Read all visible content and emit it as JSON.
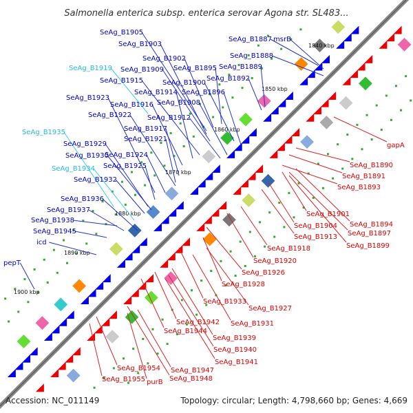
{
  "title": "Salmonella enterica subsp. enterica serovar Agona str. SL483...",
  "accession": "Accession: NC_011149",
  "summary": "Topology: circular; Length: 4,798,660 bp; Genes: 4,669",
  "colors": {
    "forward": "#0000cc",
    "reverse": "#dd0000",
    "rna": "#33bbee",
    "backbone": "#888888"
  },
  "kbp_labels": [
    "1840 kbp",
    "1850 kbp",
    "1860 kbp",
    "1870 kbp",
    "1880 kbp",
    "1890 kbp",
    "1900 kbp"
  ],
  "forward_labels": [
    {
      "text": "SeAg_B1905",
      "color": "#0000cc"
    },
    {
      "text": "SeAg_B1903",
      "color": "#0000cc"
    },
    {
      "text": "SeAg_B1887",
      "color": "#0000cc"
    },
    {
      "text": "msrB",
      "color": "#0000cc"
    },
    {
      "text": "SeAg_B1888",
      "color": "#0000cc"
    },
    {
      "text": "SeAg_B1902",
      "color": "#0000cc"
    },
    {
      "text": "SeAg_B1889",
      "color": "#0000cc"
    },
    {
      "text": "SeAg_B1919",
      "color": "#22bbdd"
    },
    {
      "text": "SeAg_B1909",
      "color": "#0000cc"
    },
    {
      "text": "SeAg_B1895",
      "color": "#0000cc"
    },
    {
      "text": "SeAg_B1915",
      "color": "#0000cc"
    },
    {
      "text": "SeAg_B1900",
      "color": "#0000cc"
    },
    {
      "text": "SeAg_B1892",
      "color": "#0000cc"
    },
    {
      "text": "SeAg_B1914",
      "color": "#0000cc"
    },
    {
      "text": "SeAg_B1896",
      "color": "#0000cc"
    },
    {
      "text": "SeAg_B1923",
      "color": "#0000cc"
    },
    {
      "text": "SeAg_B1908",
      "color": "#0000cc"
    },
    {
      "text": "SeAg_B1916",
      "color": "#0000cc"
    },
    {
      "text": "SeAg_B1922",
      "color": "#0000cc"
    },
    {
      "text": "SeAg_B1912",
      "color": "#0000cc"
    },
    {
      "text": "SeAg_B1917",
      "color": "#0000cc"
    },
    {
      "text": "SeAg_B1935",
      "color": "#22bbdd"
    },
    {
      "text": "SeAg_B1921",
      "color": "#0000cc"
    },
    {
      "text": "SeAg_B1929",
      "color": "#0000cc"
    },
    {
      "text": "SeAg_B1930",
      "color": "#0000cc"
    },
    {
      "text": "SeAg_B1924",
      "color": "#0000cc"
    },
    {
      "text": "SeAg_B1934",
      "color": "#22bbdd"
    },
    {
      "text": "SeAg_B1925",
      "color": "#0000cc"
    },
    {
      "text": "SeAg_B1932",
      "color": "#0000cc"
    },
    {
      "text": "SeAg_B1936",
      "color": "#0000cc"
    },
    {
      "text": "SeAg_B1937",
      "color": "#0000cc"
    },
    {
      "text": "SeAg_B1938",
      "color": "#0000cc"
    },
    {
      "text": "SeAg_B1945",
      "color": "#0000cc"
    },
    {
      "text": "icd",
      "color": "#0000cc"
    },
    {
      "text": "pepT",
      "color": "#0000cc"
    }
  ],
  "reverse_labels": [
    "gapA",
    "SeAg_B1890",
    "SeAg_B1891",
    "SeAg_B1893",
    "SeAg_B1901",
    "SeAg_B1894",
    "SeAg_B1904",
    "SeAg_B1897",
    "SeAg_B1913",
    "SeAg_B1899",
    "SeAg_B1918",
    "SeAg_B1920",
    "SeAg_B1926",
    "SeAg_B1928",
    "SeAg_B1933",
    "SeAg_B1927",
    "SeAg_B1931",
    "SeAg_B1942",
    "SeAg_B1944",
    "SeAg_B1939",
    "SeAg_B1940",
    "SeAg_B1941",
    "SeAg_B1954",
    "SeAg_B1947",
    "SeAg_B1955",
    "purB",
    "SeAg_B1948"
  ]
}
